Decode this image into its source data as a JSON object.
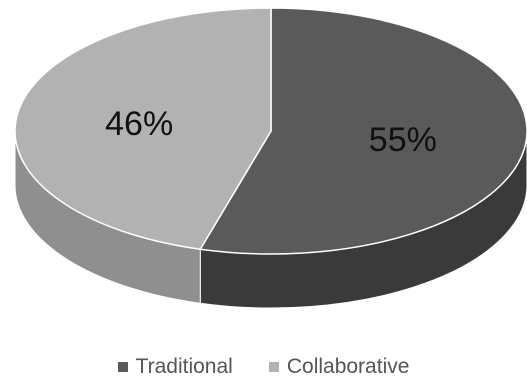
{
  "chart_data": {
    "type": "pie",
    "style": "3d",
    "slices": [
      {
        "label": "Traditional",
        "value": 55,
        "display": "55%",
        "color": "#5a5a5a",
        "side_color": "#3a3a3a"
      },
      {
        "label": "Collaborative",
        "value": 46,
        "display": "46%",
        "color": "#b2b2b2",
        "side_color": "#8f8f8f"
      }
    ],
    "legend": {
      "placement": "bottom",
      "entries": [
        "Traditional",
        "Collaborative"
      ]
    },
    "title": ""
  }
}
